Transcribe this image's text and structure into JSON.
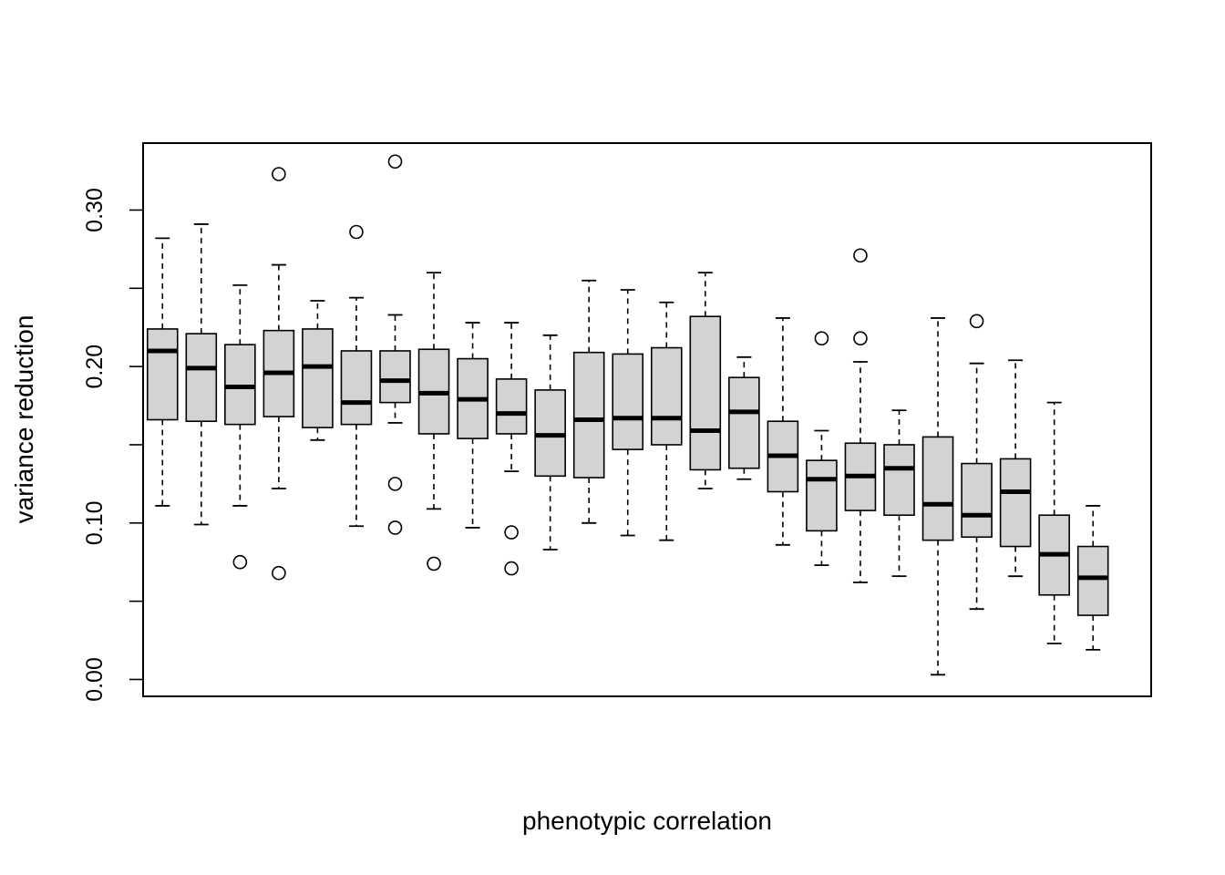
{
  "chart_data": {
    "type": "boxplot",
    "title": "",
    "xlabel": "phenotypic correlation",
    "ylabel": "variance reduction",
    "ylim": [
      -0.0108,
      0.3428
    ],
    "xlim": [
      0.5,
      26.5
    ],
    "yticks": [
      0.0,
      0.05,
      0.1,
      0.15,
      0.2,
      0.25,
      0.3
    ],
    "ytick_labels": [
      "0.00",
      "",
      "0.10",
      "",
      "0.20",
      "",
      "0.30"
    ],
    "grid": false,
    "legend": "none",
    "colors": {
      "box_fill": "#d3d3d3",
      "stroke": "#000000",
      "background": "#ffffff"
    },
    "boxes": [
      {
        "whisker_low": 0.111,
        "q1": 0.166,
        "median": 0.21,
        "q3": 0.224,
        "whisker_high": 0.282,
        "outliers": []
      },
      {
        "whisker_low": 0.099,
        "q1": 0.165,
        "median": 0.199,
        "q3": 0.221,
        "whisker_high": 0.291,
        "outliers": []
      },
      {
        "whisker_low": 0.111,
        "q1": 0.163,
        "median": 0.187,
        "q3": 0.214,
        "whisker_high": 0.252,
        "outliers": [
          0.075
        ]
      },
      {
        "whisker_low": 0.122,
        "q1": 0.168,
        "median": 0.196,
        "q3": 0.223,
        "whisker_high": 0.265,
        "outliers": [
          0.068,
          0.323
        ]
      },
      {
        "whisker_low": 0.153,
        "q1": 0.161,
        "median": 0.2,
        "q3": 0.224,
        "whisker_high": 0.242,
        "outliers": []
      },
      {
        "whisker_low": 0.098,
        "q1": 0.163,
        "median": 0.177,
        "q3": 0.21,
        "whisker_high": 0.244,
        "outliers": [
          0.286
        ]
      },
      {
        "whisker_low": 0.164,
        "q1": 0.177,
        "median": 0.191,
        "q3": 0.21,
        "whisker_high": 0.233,
        "outliers": [
          0.097,
          0.125,
          0.331
        ]
      },
      {
        "whisker_low": 0.109,
        "q1": 0.157,
        "median": 0.183,
        "q3": 0.211,
        "whisker_high": 0.26,
        "outliers": [
          0.074
        ]
      },
      {
        "whisker_low": 0.097,
        "q1": 0.154,
        "median": 0.179,
        "q3": 0.205,
        "whisker_high": 0.228,
        "outliers": []
      },
      {
        "whisker_low": 0.133,
        "q1": 0.157,
        "median": 0.17,
        "q3": 0.192,
        "whisker_high": 0.228,
        "outliers": [
          0.071,
          0.094
        ]
      },
      {
        "whisker_low": 0.083,
        "q1": 0.13,
        "median": 0.156,
        "q3": 0.185,
        "whisker_high": 0.22,
        "outliers": []
      },
      {
        "whisker_low": 0.1,
        "q1": 0.129,
        "median": 0.166,
        "q3": 0.209,
        "whisker_high": 0.255,
        "outliers": []
      },
      {
        "whisker_low": 0.092,
        "q1": 0.147,
        "median": 0.167,
        "q3": 0.208,
        "whisker_high": 0.249,
        "outliers": []
      },
      {
        "whisker_low": 0.089,
        "q1": 0.15,
        "median": 0.167,
        "q3": 0.212,
        "whisker_high": 0.241,
        "outliers": []
      },
      {
        "whisker_low": 0.122,
        "q1": 0.134,
        "median": 0.159,
        "q3": 0.232,
        "whisker_high": 0.26,
        "outliers": []
      },
      {
        "whisker_low": 0.128,
        "q1": 0.135,
        "median": 0.171,
        "q3": 0.193,
        "whisker_high": 0.206,
        "outliers": []
      },
      {
        "whisker_low": 0.086,
        "q1": 0.12,
        "median": 0.143,
        "q3": 0.165,
        "whisker_high": 0.231,
        "outliers": []
      },
      {
        "whisker_low": 0.073,
        "q1": 0.095,
        "median": 0.128,
        "q3": 0.14,
        "whisker_high": 0.159,
        "outliers": [
          0.218
        ]
      },
      {
        "whisker_low": 0.062,
        "q1": 0.108,
        "median": 0.13,
        "q3": 0.151,
        "whisker_high": 0.203,
        "outliers": [
          0.218,
          0.271
        ]
      },
      {
        "whisker_low": 0.066,
        "q1": 0.105,
        "median": 0.135,
        "q3": 0.15,
        "whisker_high": 0.172,
        "outliers": []
      },
      {
        "whisker_low": 0.003,
        "q1": 0.089,
        "median": 0.112,
        "q3": 0.155,
        "whisker_high": 0.231,
        "outliers": []
      },
      {
        "whisker_low": 0.045,
        "q1": 0.091,
        "median": 0.105,
        "q3": 0.138,
        "whisker_high": 0.202,
        "outliers": [
          0.229
        ]
      },
      {
        "whisker_low": 0.066,
        "q1": 0.085,
        "median": 0.12,
        "q3": 0.141,
        "whisker_high": 0.204,
        "outliers": []
      },
      {
        "whisker_low": 0.023,
        "q1": 0.054,
        "median": 0.08,
        "q3": 0.105,
        "whisker_high": 0.177,
        "outliers": []
      },
      {
        "whisker_low": 0.019,
        "q1": 0.041,
        "median": 0.065,
        "q3": 0.085,
        "whisker_high": 0.111,
        "outliers": []
      }
    ]
  }
}
